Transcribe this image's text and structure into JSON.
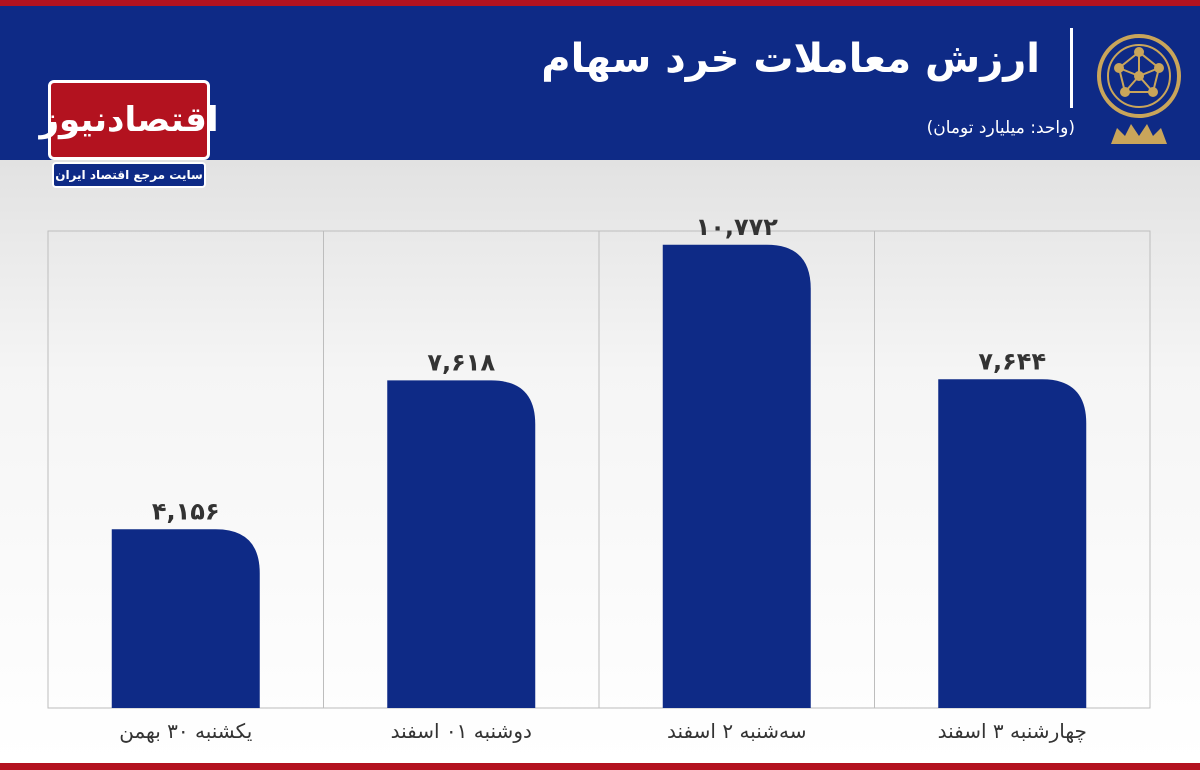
{
  "header": {
    "title": "ارزش معاملات خرد سهام",
    "subtitle": "(واحد: میلیارد تومان)"
  },
  "logo": {
    "name": "اقتصادنیوز",
    "tagline": "سایت مرجع اقتصاد ایران"
  },
  "colors": {
    "header_bg": "#0e2a86",
    "accent_red": "#b3121f",
    "bar": "#0e2a86"
  },
  "chart_data": {
    "type": "bar",
    "title": "ارزش معاملات خرد سهام",
    "subtitle": "(واحد: میلیارد تومان)",
    "categories": [
      "یکشنبه ۳۰ بهمن",
      "دوشنبه ۰۱ اسفند",
      "سه‌شنبه ۲ اسفند",
      "چهارشنبه ۳ اسفند"
    ],
    "values": [
      4156,
      7618,
      10772,
      7644
    ],
    "value_labels": [
      "۴,۱۵۶",
      "۷,۶۱۸",
      "۱۰,۷۷۲",
      "۷,۶۴۴"
    ],
    "ylim": [
      0,
      12000
    ],
    "grid": "vertical"
  }
}
